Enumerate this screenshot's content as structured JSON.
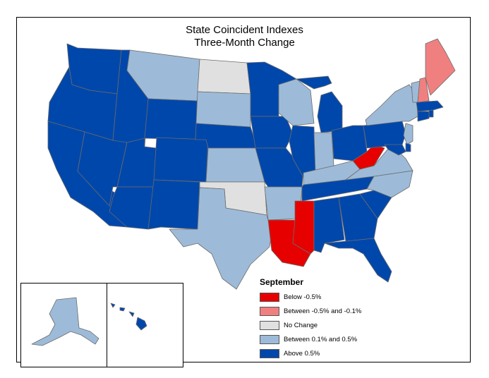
{
  "title": {
    "line1": "State Coincident Indexes",
    "line2": "Three-Month Change"
  },
  "legend": {
    "title": "September",
    "items": [
      {
        "label": "Below -0.5%",
        "color": "#e60000"
      },
      {
        "label": "Between -0.5% and -0.1%",
        "color": "#f08080"
      },
      {
        "label": "No Change",
        "color": "#e0e0e0"
      },
      {
        "label": "Between 0.1% and 0.5%",
        "color": "#9dbbd8"
      },
      {
        "label": "Above 0.5%",
        "color": "#0047ab"
      }
    ]
  },
  "colors": {
    "below": "#e60000",
    "between_neg": "#f08080",
    "no_change": "#e0e0e0",
    "between_pos": "#9dbbd8",
    "above": "#0047ab",
    "border": "#6b6b6b"
  },
  "states": {
    "WA": "above",
    "OR": "above",
    "CA": "above",
    "ID": "above",
    "NV": "above",
    "MT": "between_pos",
    "WY": "above",
    "UT": "above",
    "AZ": "above",
    "CO": "above",
    "NM": "above",
    "ND": "no_change",
    "SD": "between_pos",
    "NE": "above",
    "KS": "between_pos",
    "OK": "no_change",
    "TX": "between_pos",
    "MN": "above",
    "IA": "above",
    "MO": "above",
    "AR": "between_pos",
    "LA": "below",
    "WI": "between_pos",
    "IL": "above",
    "MI": "above",
    "IN": "between_pos",
    "OH": "above",
    "KY": "between_pos",
    "TN": "above",
    "MS": "below",
    "AL": "above",
    "GA": "above",
    "FL": "above",
    "SC": "above",
    "NC": "between_pos",
    "VA": "between_pos",
    "WV": "below",
    "PA": "above",
    "NY": "between_pos",
    "NJ": "between_pos",
    "DE": "above",
    "MD": "above",
    "CT": "above",
    "RI": "above",
    "MA": "above",
    "VT": "between_pos",
    "NH": "between_neg",
    "ME": "between_neg",
    "AK": "between_pos",
    "HI": "above"
  }
}
